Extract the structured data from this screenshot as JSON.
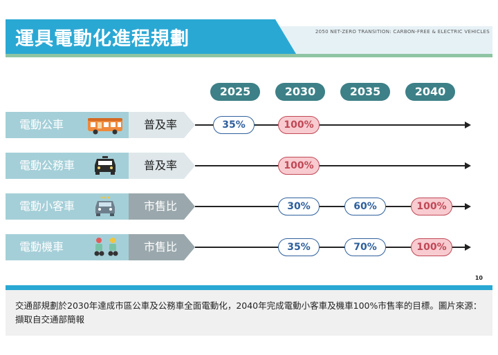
{
  "header": {
    "title": "運具電動化進程規劃",
    "subtitle": "2050 NET-ZERO TRANSITION: CARBON-FREE & ELECTRIC VEHICLES"
  },
  "years": [
    "2025",
    "2030",
    "2035",
    "2040"
  ],
  "rows": [
    {
      "label": "電動公車",
      "icon": "bus-icon",
      "metric": "普及率",
      "values": [
        "35%",
        "100%",
        "",
        ""
      ]
    },
    {
      "label": "電動公務車",
      "icon": "car-front-icon",
      "metric": "普及率",
      "values": [
        "",
        "100%",
        "",
        ""
      ]
    },
    {
      "label": "電動小客車",
      "icon": "passenger-car-icon",
      "metric": "市售比",
      "values": [
        "",
        "30%",
        "60%",
        "100%"
      ]
    },
    {
      "label": "電動機車",
      "icon": "scooter-icon",
      "metric": "市售比",
      "values": [
        "",
        "35%",
        "70%",
        "100%"
      ]
    }
  ],
  "page_number": "10",
  "caption": "交通部規劃於2030年達成市區公車及公務車全面電動化，2040年完成電動小客車及機車100%市售率的目標。圖片來源：擷取自交通部簡報",
  "colors": {
    "title_blue": "#2aa8d4",
    "year_badge": "#3d8087",
    "row_label": "#a4cfd8",
    "pill_blue": "#2e5f9c",
    "pill_pink_fill": "#f8cbd0",
    "pill_pink_text": "#c04856"
  }
}
